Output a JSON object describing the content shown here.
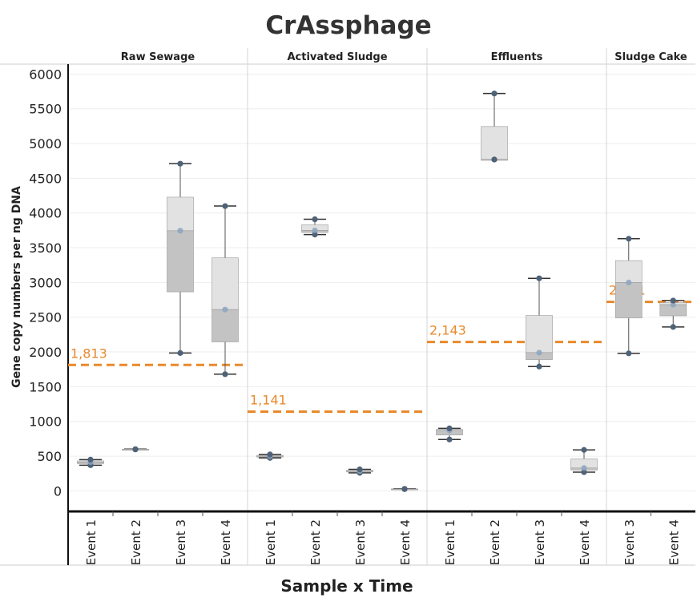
{
  "chart_data": {
    "type": "box",
    "title": "CrAssphage",
    "xlabel": "Sample x Time",
    "ylabel": "Gene copy numbers per ng DNA",
    "ylim": [
      -250,
      6150
    ],
    "yticks": [
      0,
      500,
      1000,
      1500,
      2000,
      2500,
      3000,
      3500,
      4000,
      4500,
      5000,
      5500,
      6000
    ],
    "grid": true,
    "colors": {
      "ref_line": "#e8892b",
      "points": "#4e6278",
      "box_upper": "#e2e2e2",
      "box_lower": "#c3c3c3",
      "whisker": "#555555"
    },
    "panels": [
      {
        "name": "Raw Sewage",
        "reference_line": {
          "value": 1813,
          "label": "1,813"
        },
        "boxes": [
          {
            "category": "Event 1",
            "points": [
              370,
              415,
              450
            ],
            "min": 370,
            "q1": 392,
            "median": 415,
            "q3": 432,
            "max": 450
          },
          {
            "category": "Event 2",
            "points": [
              597,
              601
            ],
            "min": 597,
            "q1": 598,
            "median": 599,
            "q3": 600,
            "max": 601
          },
          {
            "category": "Event 3",
            "points": [
              1985,
              3745,
              4710
            ],
            "min": 1985,
            "q1": 2865,
            "median": 3745,
            "q3": 4228,
            "max": 4710
          },
          {
            "category": "Event 4",
            "points": [
              1680,
              2610,
              4100
            ],
            "min": 1680,
            "q1": 2145,
            "median": 2610,
            "q3": 3355,
            "max": 4100
          }
        ]
      },
      {
        "name": "Activated Sludge",
        "reference_line": {
          "value": 1141,
          "label": "1,141"
        },
        "boxes": [
          {
            "category": "Event 1",
            "points": [
              475,
              500,
              525
            ],
            "min": 475,
            "q1": 487,
            "median": 500,
            "q3": 512,
            "max": 525
          },
          {
            "category": "Event 2",
            "points": [
              3690,
              3750,
              3910
            ],
            "min": 3690,
            "q1": 3720,
            "median": 3750,
            "q3": 3830,
            "max": 3910
          },
          {
            "category": "Event 3",
            "points": [
              260,
              285,
              310
            ],
            "min": 260,
            "q1": 272,
            "median": 285,
            "q3": 298,
            "max": 310
          },
          {
            "category": "Event 4",
            "points": [
              25,
              30
            ],
            "min": 25,
            "q1": 26,
            "median": 27,
            "q3": 29,
            "max": 30
          }
        ]
      },
      {
        "name": "Effluents",
        "reference_line": {
          "value": 2143,
          "label": "2,143"
        },
        "boxes": [
          {
            "category": "Event 1",
            "points": [
              740,
              870,
              900
            ],
            "min": 740,
            "q1": 805,
            "median": 870,
            "q3": 885,
            "max": 900
          },
          {
            "category": "Event 2",
            "points": [
              4770,
              4770,
              5720
            ],
            "min": 4770,
            "q1": 4770,
            "median": 4770,
            "q3": 5245,
            "max": 5720
          },
          {
            "category": "Event 3",
            "points": [
              1790,
              1990,
              3060
            ],
            "min": 1790,
            "q1": 1890,
            "median": 1990,
            "q3": 2525,
            "max": 3060
          },
          {
            "category": "Event 4",
            "points": [
              270,
              330,
              590
            ],
            "min": 270,
            "q1": 300,
            "median": 330,
            "q3": 460,
            "max": 590
          }
        ]
      },
      {
        "name": "Sludge Cake",
        "reference_line": {
          "value": 2721,
          "label": "2,721"
        },
        "boxes": [
          {
            "category": "Event 3",
            "points": [
              1980,
              3000,
              3630
            ],
            "min": 1980,
            "q1": 2490,
            "median": 3000,
            "q3": 3315,
            "max": 3630
          },
          {
            "category": "Event 4",
            "points": [
              2360,
              2680,
              2740
            ],
            "min": 2360,
            "q1": 2520,
            "median": 2680,
            "q3": 2710,
            "max": 2740
          }
        ]
      }
    ]
  }
}
